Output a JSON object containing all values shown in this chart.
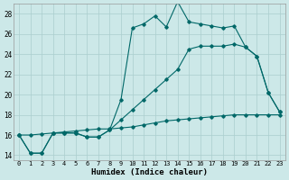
{
  "xlabel": "Humidex (Indice chaleur)",
  "bg_color": "#cce8e8",
  "grid_color": "#aacece",
  "line_color": "#006868",
  "xlim": [
    -0.5,
    23.5
  ],
  "ylim": [
    13.5,
    29.0
  ],
  "xticks": [
    0,
    1,
    2,
    3,
    4,
    5,
    6,
    7,
    8,
    9,
    10,
    11,
    12,
    13,
    14,
    15,
    16,
    17,
    18,
    19,
    20,
    21,
    22,
    23
  ],
  "yticks": [
    14,
    16,
    18,
    20,
    22,
    24,
    26,
    28
  ],
  "line1_x": [
    0,
    1,
    2,
    3,
    4,
    5,
    6,
    7,
    8,
    9,
    10,
    11,
    12,
    13,
    14,
    15,
    16,
    17,
    18,
    19,
    20,
    21,
    22,
    23
  ],
  "line1_y": [
    16.0,
    14.2,
    14.2,
    16.2,
    16.2,
    16.2,
    15.8,
    15.8,
    16.5,
    19.5,
    26.6,
    27.0,
    27.8,
    26.7,
    29.2,
    27.2,
    27.0,
    26.8,
    26.6,
    26.8,
    24.7,
    23.8,
    20.2,
    18.3
  ],
  "line2_x": [
    0,
    1,
    2,
    3,
    4,
    5,
    6,
    7,
    8,
    9,
    10,
    11,
    12,
    13,
    14,
    15,
    16,
    17,
    18,
    19,
    20,
    21,
    22,
    23
  ],
  "line2_y": [
    16.0,
    14.2,
    14.2,
    16.2,
    16.2,
    16.2,
    15.8,
    15.8,
    16.5,
    17.5,
    18.5,
    19.5,
    20.5,
    21.5,
    22.5,
    24.5,
    24.8,
    24.8,
    24.8,
    25.0,
    24.7,
    23.8,
    20.2,
    18.3
  ],
  "line3_x": [
    0,
    1,
    2,
    3,
    4,
    5,
    6,
    7,
    8,
    9,
    10,
    11,
    12,
    13,
    14,
    15,
    16,
    17,
    18,
    19,
    20,
    21,
    22,
    23
  ],
  "line3_y": [
    16.0,
    16.0,
    16.1,
    16.2,
    16.3,
    16.4,
    16.5,
    16.6,
    16.6,
    16.7,
    16.8,
    17.0,
    17.2,
    17.4,
    17.5,
    17.6,
    17.7,
    17.8,
    17.9,
    18.0,
    18.0,
    18.0,
    18.0,
    18.0
  ],
  "marker": "D",
  "markersize": 1.8,
  "linewidth": 0.8
}
